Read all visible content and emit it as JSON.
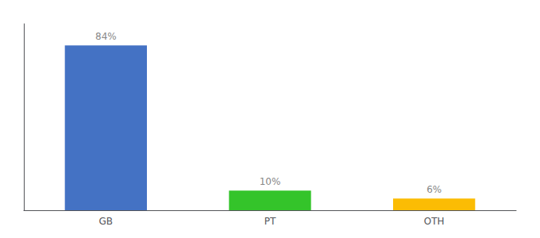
{
  "chart_data": {
    "type": "bar",
    "categories": [
      "GB",
      "PT",
      "OTH"
    ],
    "values": [
      84,
      10,
      6
    ],
    "value_labels": [
      "84%",
      "10%",
      "6%"
    ],
    "colors": [
      "#4472c4",
      "#34c42a",
      "#fbbc04"
    ],
    "ylim": [
      0,
      95
    ],
    "grid": false,
    "data_labels": true,
    "tick_labels": "x"
  }
}
